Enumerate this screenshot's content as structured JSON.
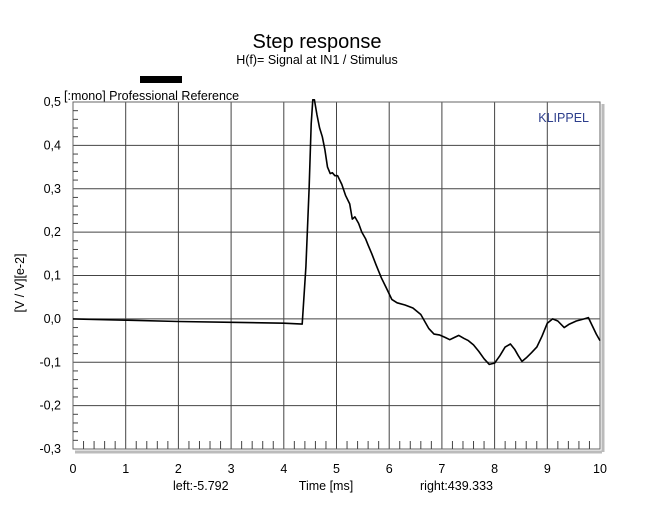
{
  "chart_data": {
    "type": "line",
    "title": "Step response",
    "subtitle": "H(f)= Signal at IN1 / Stimulus",
    "legend": "[:mono] Professional Reference",
    "legend_color": "#000000",
    "brand": "KLIPPEL",
    "brand_color": "#2d3e8c",
    "xlabel": "Time [ms]",
    "ylabel": "[V / V][e-2]",
    "left_readout": "left:-5.792",
    "right_readout": "right:439.333",
    "xlim": [
      0,
      10
    ],
    "ylim": [
      -0.3,
      0.5
    ],
    "grid": true,
    "x_ticks": [
      0,
      1,
      2,
      3,
      4,
      5,
      6,
      7,
      8,
      9,
      10
    ],
    "x_tick_labels": [
      "0",
      "1",
      "2",
      "3",
      "4",
      "5",
      "6",
      "7",
      "8",
      "9",
      "10"
    ],
    "y_ticks": [
      0.5,
      0.4,
      0.3,
      0.2,
      0.1,
      0.0,
      -0.1,
      -0.2,
      -0.3
    ],
    "y_tick_labels": [
      "0,5",
      "0,4",
      "0,3",
      "0,2",
      "0,1",
      "0,0",
      "-0,1",
      "-0,2",
      "-0,3"
    ],
    "series": [
      {
        "color": "#000000",
        "x": [
          0,
          1,
          2,
          3,
          4,
          4.35,
          4.42,
          4.48,
          4.52,
          4.55,
          4.58,
          4.63,
          4.68,
          4.73,
          4.78,
          4.83,
          4.88,
          4.92,
          4.97,
          5.02,
          5.1,
          5.17,
          5.25,
          5.3,
          5.35,
          5.42,
          5.48,
          5.55,
          5.6,
          5.67,
          5.75,
          5.85,
          5.95,
          6.05,
          6.15,
          6.3,
          6.45,
          6.6,
          6.75,
          6.85,
          6.95,
          7.05,
          7.15,
          7.25,
          7.32,
          7.42,
          7.5,
          7.6,
          7.7,
          7.8,
          7.9,
          8.0,
          8.1,
          8.2,
          8.3,
          8.38,
          8.45,
          8.52,
          8.6,
          8.7,
          8.8,
          8.9,
          9.0,
          9.1,
          9.2,
          9.32,
          9.42,
          9.55,
          9.7,
          9.78,
          9.85,
          9.93,
          10.0
        ],
        "y": [
          0.0,
          -0.003,
          -0.006,
          -0.008,
          -0.01,
          -0.012,
          0.12,
          0.3,
          0.45,
          0.505,
          0.505,
          0.47,
          0.44,
          0.42,
          0.39,
          0.35,
          0.335,
          0.337,
          0.33,
          0.33,
          0.31,
          0.285,
          0.265,
          0.23,
          0.235,
          0.22,
          0.2,
          0.185,
          0.17,
          0.15,
          0.125,
          0.095,
          0.07,
          0.045,
          0.037,
          0.032,
          0.025,
          0.01,
          -0.022,
          -0.035,
          -0.037,
          -0.042,
          -0.048,
          -0.042,
          -0.038,
          -0.045,
          -0.05,
          -0.06,
          -0.075,
          -0.092,
          -0.105,
          -0.102,
          -0.085,
          -0.065,
          -0.058,
          -0.07,
          -0.085,
          -0.098,
          -0.09,
          -0.078,
          -0.065,
          -0.04,
          -0.01,
          0.0,
          -0.005,
          -0.02,
          -0.012,
          -0.005,
          0.0,
          0.003,
          -0.015,
          -0.035,
          -0.05
        ]
      }
    ]
  }
}
